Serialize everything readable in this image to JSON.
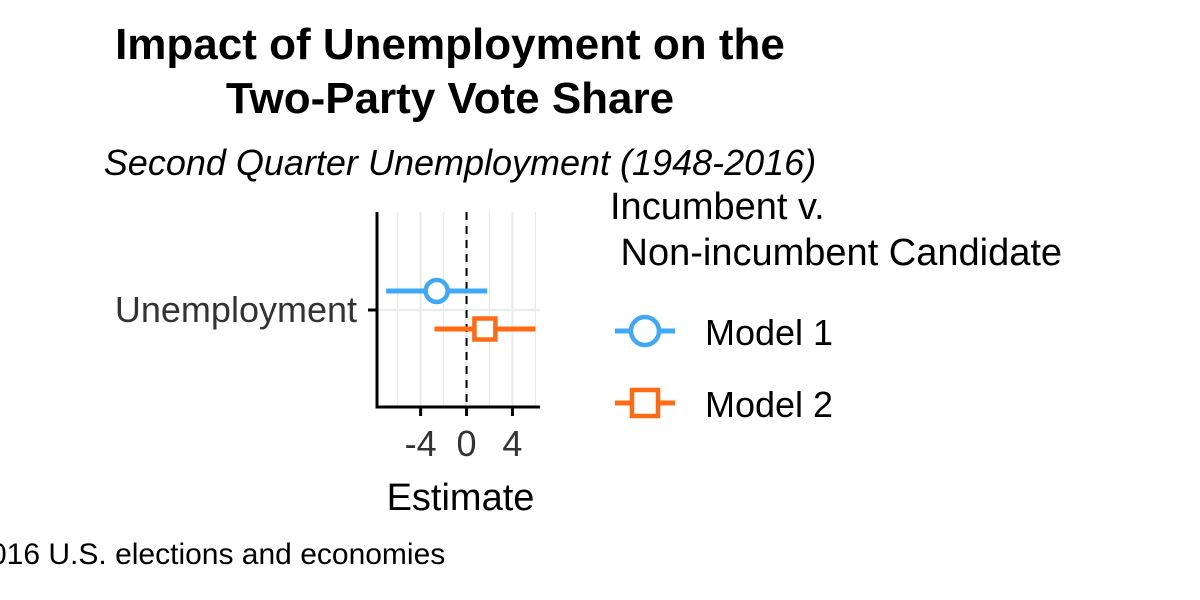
{
  "chart_data": {
    "type": "coefficient-plot",
    "title": "Impact of Unemployment on the Two-Party Vote Share",
    "title_lines": [
      "Impact of Unemployment on the",
      "Two-Party Vote Share"
    ],
    "subtitle": "Second Quarter Unemployment (1948-2016)",
    "xlabel": "Estimate",
    "ylabel": "",
    "xlim": [
      -7.8,
      6.4
    ],
    "xticks": [
      -4,
      0,
      4
    ],
    "xtick_labels": [
      "-4",
      "0",
      "4"
    ],
    "categories": [
      "Unemployment"
    ],
    "reference_line": 0,
    "legend": {
      "title": "Incumbent v.\n Non-incumbent Candidate",
      "position": "right"
    },
    "series": [
      {
        "name": "Model 1",
        "color": "#3fa9f5",
        "marker": "circle",
        "estimate": -2.6,
        "ci": [
          -7.0,
          1.8
        ]
      },
      {
        "name": "Model 2",
        "color": "#ff6a13",
        "marker": "square",
        "estimate": 1.6,
        "ci": [
          -2.8,
          6.0
        ]
      }
    ],
    "caption": "016 U.S. elections and economies"
  }
}
